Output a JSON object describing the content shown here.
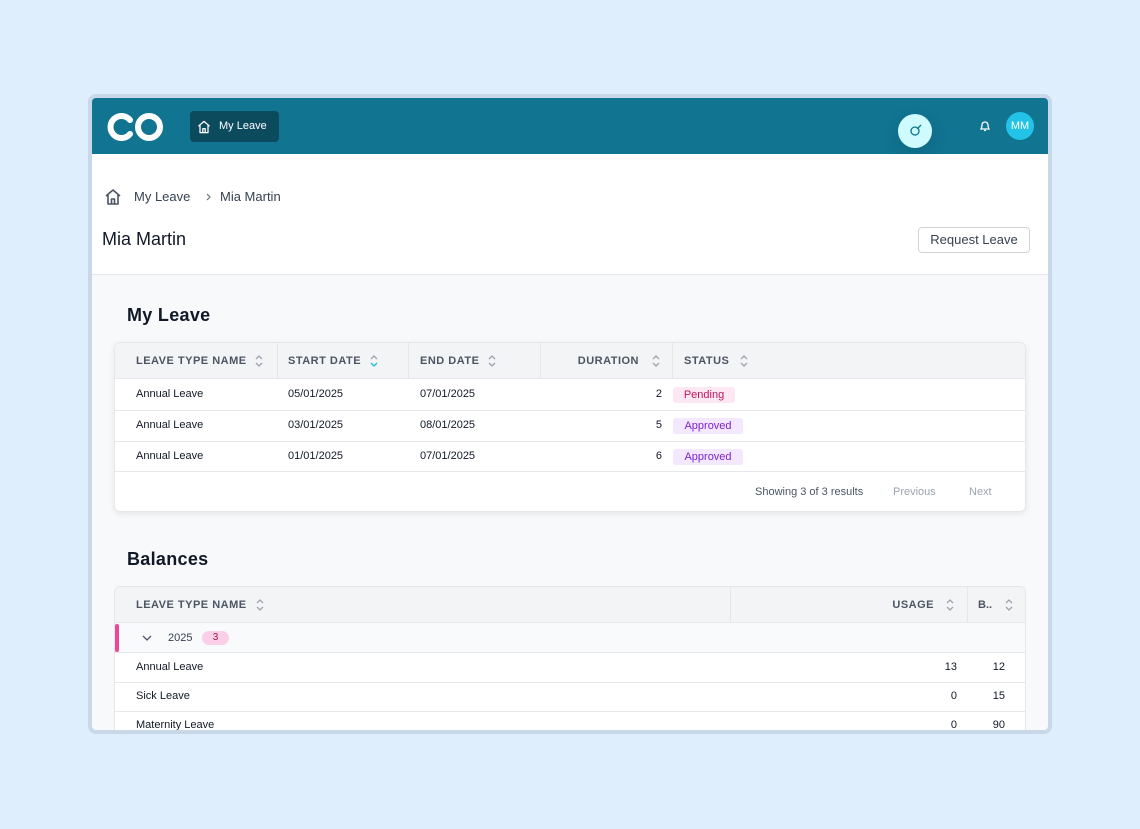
{
  "nav": {
    "active_item": "My Leave",
    "avatar_initials": "MM"
  },
  "breadcrumb": [
    "My Leave",
    "Mia Martin"
  ],
  "page": {
    "title": "Mia Martin",
    "action": "Request Leave"
  },
  "leave_section": {
    "heading": "My Leave",
    "table": {
      "columns": [
        "LEAVE TYPE NAME",
        "START DATE",
        "END DATE",
        "DURATION",
        "STATUS"
      ],
      "rows": [
        [
          "Annual Leave",
          "05/01/2025",
          "07/01/2025",
          2,
          "Pending"
        ],
        [
          "Annual Leave",
          "03/01/2025",
          "08/01/2025",
          5,
          "Approved"
        ],
        [
          "Annual Leave",
          "01/01/2025",
          "07/01/2025",
          6,
          "Approved"
        ]
      ]
    },
    "footer": {
      "summary": "Showing 3 of 3 results",
      "previous": "Previous",
      "next": "Next"
    }
  },
  "balances_section": {
    "heading": "Balances",
    "table": {
      "columns": [
        "LEAVE TYPE NAME",
        "USAGE",
        "B.."
      ],
      "group": {
        "label": "2025",
        "count": 3
      },
      "rows": [
        [
          "Annual Leave",
          13,
          12
        ],
        [
          "Sick Leave",
          0,
          15
        ],
        [
          "Maternity Leave",
          0,
          90
        ]
      ]
    }
  }
}
